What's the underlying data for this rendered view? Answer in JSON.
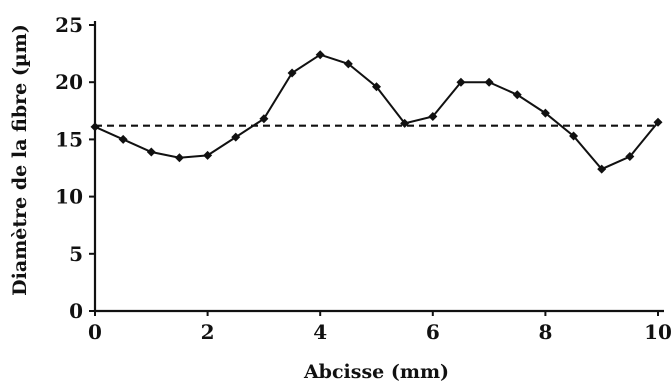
{
  "chart_data": {
    "type": "line",
    "title": "",
    "xlabel": "Abcisse (mm)",
    "ylabel": "Diamètre de la fibre (µm)",
    "xlim": [
      0,
      10
    ],
    "ylim": [
      0,
      25
    ],
    "x_ticks": [
      "0",
      "2",
      "4",
      "6",
      "8",
      "10"
    ],
    "y_ticks": [
      "0",
      "5",
      "10",
      "15",
      "20",
      "25"
    ],
    "grid": false,
    "legend": "none",
    "series": [
      {
        "x": [
          0,
          0.5,
          1,
          1.5,
          2,
          2.5,
          3,
          3.5,
          4,
          4.5,
          5,
          5.5,
          6,
          6.5,
          7,
          7.5,
          8,
          8.5,
          9,
          9.5,
          10
        ],
        "y": [
          16.1,
          15.0,
          13.9,
          13.4,
          13.6,
          15.2,
          16.8,
          20.8,
          22.4,
          21.6,
          19.6,
          16.4,
          17.0,
          20.0,
          20.0,
          18.9,
          17.3,
          15.3,
          12.4,
          13.5,
          16.5
        ],
        "style": "solid",
        "marker": "diamond",
        "color": "#111111"
      },
      {
        "x": [
          0,
          10
        ],
        "y": [
          16.2,
          16.2
        ],
        "style": "dashed",
        "color": "#111111"
      }
    ]
  }
}
